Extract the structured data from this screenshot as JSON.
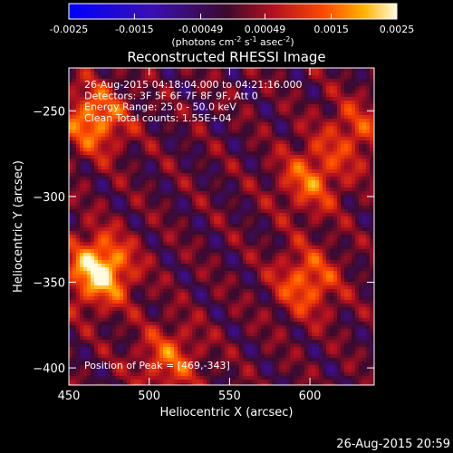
{
  "chart_data": {
    "type": "heatmap",
    "title": "Reconstructed RHESSI Image",
    "xlabel": "Heliocentric X (arcsec)",
    "ylabel": "Heliocentric Y (arcsec)",
    "xlim": [
      450,
      640
    ],
    "ylim": [
      -410,
      -225
    ],
    "x_ticks": [
      450,
      500,
      550,
      600
    ],
    "y_ticks": [
      -250,
      -300,
      -350,
      -400
    ],
    "colorbar": {
      "ticks": [
        "-0.0025",
        "-0.0015",
        "-0.00049",
        "0.00049",
        "0.0015",
        "0.0025"
      ],
      "range": [
        -0.0025,
        0.0025
      ],
      "label": "(photons cm-2 s-1 asec-2)",
      "label_base": "(photons cm",
      "label_e1": "-2",
      "label_mid1": " s",
      "label_e2": "-1",
      "label_mid2": " asec",
      "label_e3": "-2",
      "label_end": ")"
    },
    "annotations": [
      "26-Aug-2015 04:18:04.000 to 04:21:16.000",
      "Detectors: 3F 5F 6F 7F 8F 9F, Att 0",
      "Energy Range: 25.0 - 50.0 keV",
      "Clean    Total counts: 1.55E+04"
    ],
    "peak_label": "Position of Peak = [469,-343]",
    "peak": [
      469,
      -343
    ],
    "sources": [
      {
        "x": 466,
        "y": -255,
        "value": 0.0018
      },
      {
        "x": 469,
        "y": -343,
        "value": 0.0025
      },
      {
        "x": 600,
        "y": -290,
        "value": 0.0014
      },
      {
        "x": 598,
        "y": -350,
        "value": 0.0015
      },
      {
        "x": 512,
        "y": -395,
        "value": 0.0013
      },
      {
        "x": 628,
        "y": -262,
        "value": 0.0011
      }
    ],
    "timestamp": "26-Aug-2015 20:59"
  }
}
